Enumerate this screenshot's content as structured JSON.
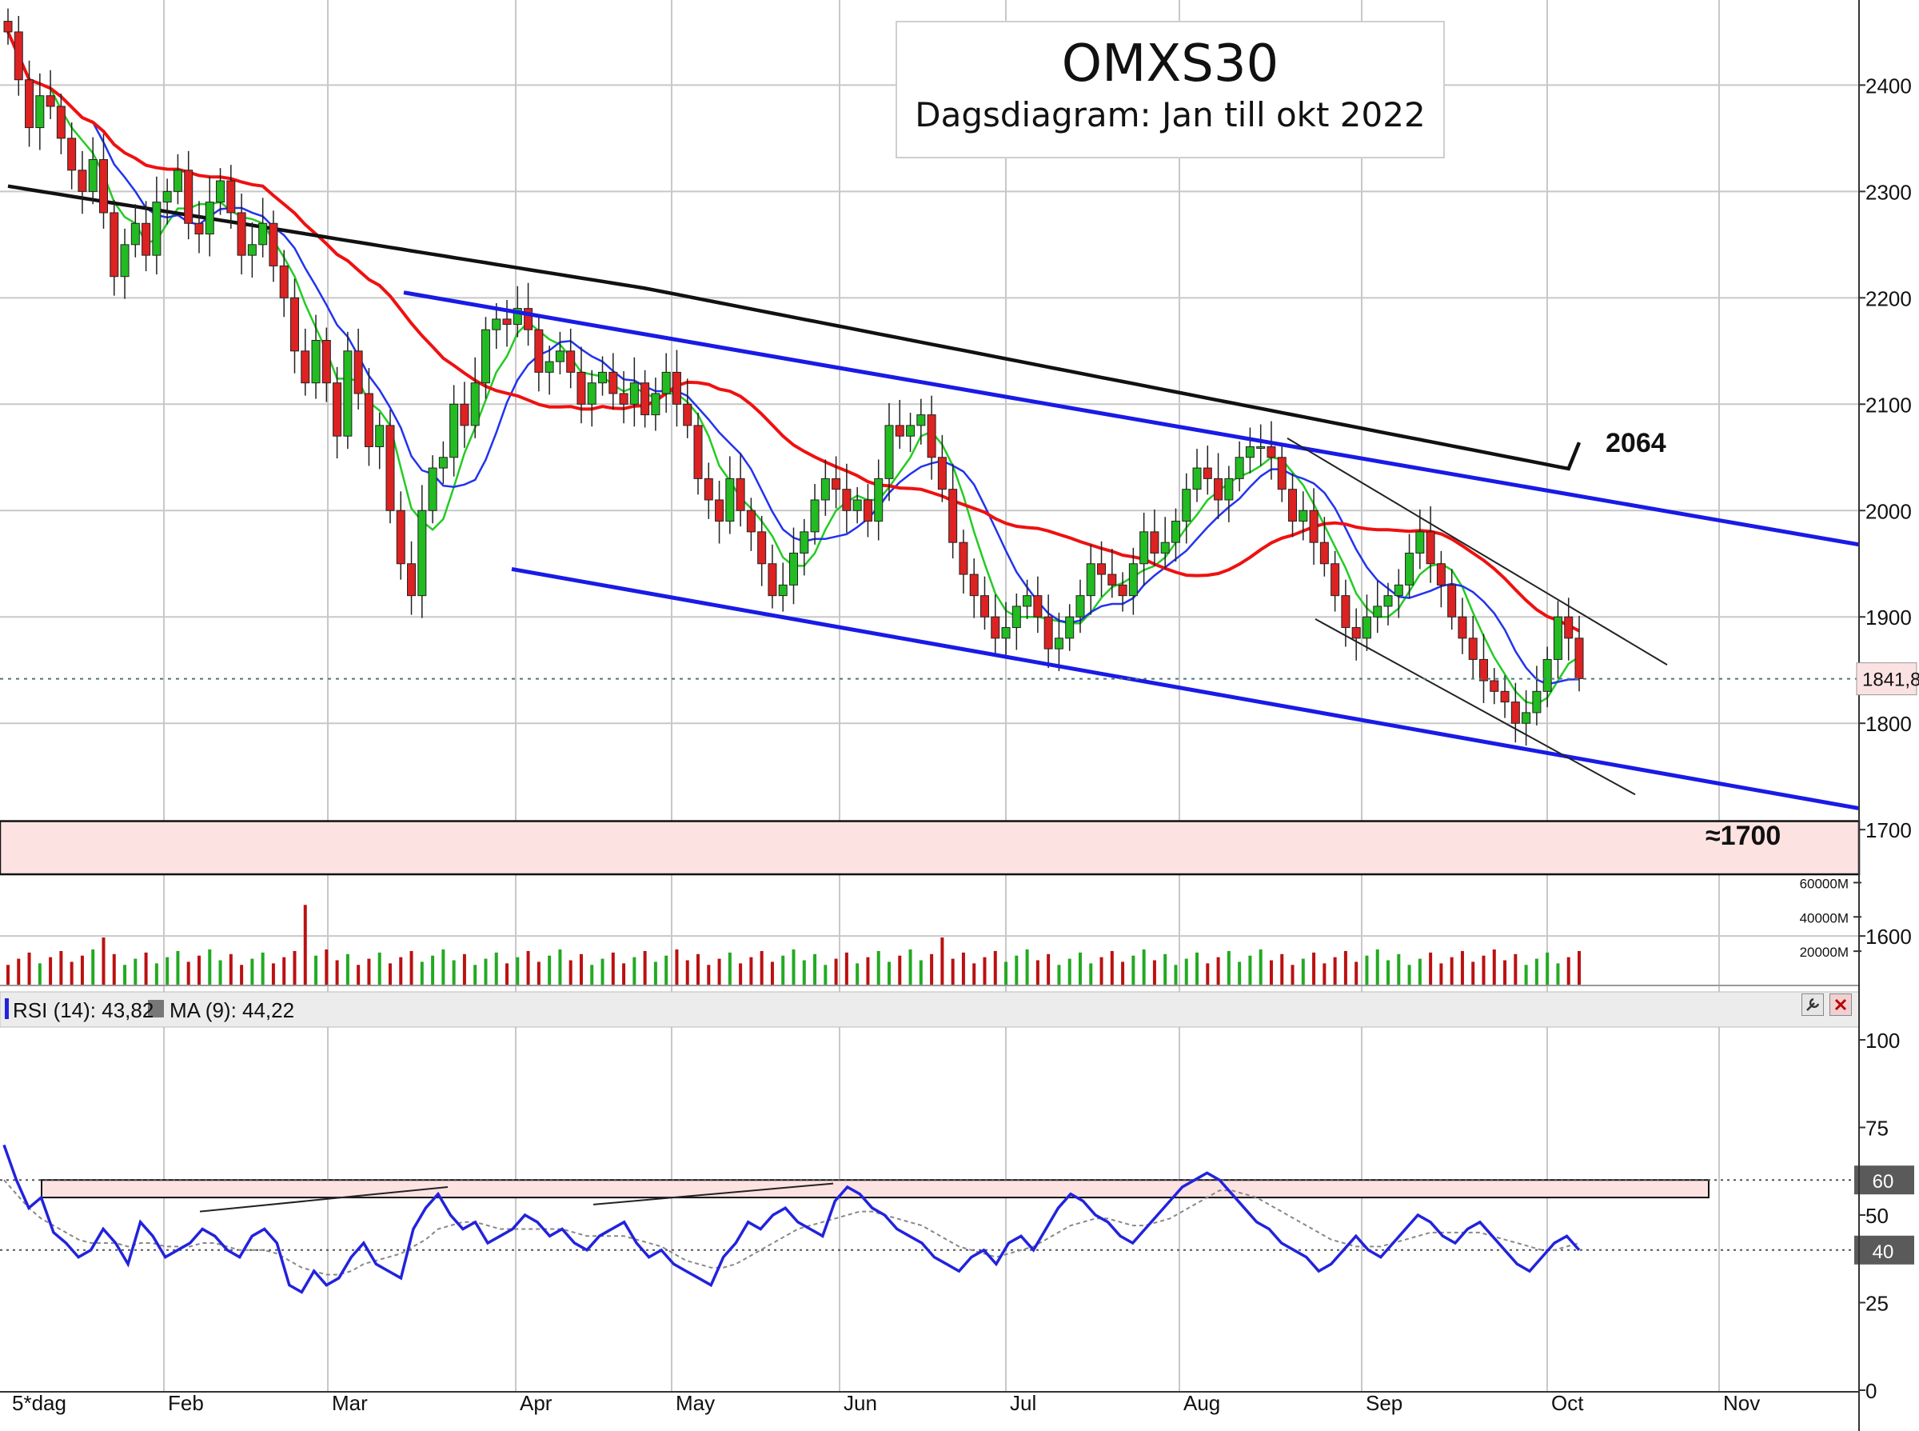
{
  "chart_data": [
    {
      "type": "candlestick",
      "title": "OMXS30",
      "subtitle": "Dagsdiagram:  Jan till okt 2022",
      "y_ticks": [
        "2400",
        "2300",
        "2200",
        "2100",
        "2000",
        "1900",
        "1800",
        "1700",
        "1600"
      ],
      "ylim": [
        1555,
        2480
      ],
      "x_months": [
        "5*dag",
        "Feb",
        "Mar",
        "Apr",
        "May",
        "Jun",
        "Jul",
        "Aug",
        "Sep",
        "Oct",
        "Nov"
      ],
      "last_price_label": "1841,8",
      "last_price": 1841.8,
      "annotations": [
        {
          "text": "2064",
          "value": 2064
        },
        {
          "text": "≈1700",
          "value": 1700
        }
      ],
      "support_zone": [
        1658,
        1708
      ],
      "series": [
        {
          "name": "price",
          "type": "candlestick",
          "up_color": "#22bb22",
          "down_color": "#dd2222",
          "closes": [
            2450,
            2405,
            2360,
            2390,
            2380,
            2350,
            2320,
            2300,
            2330,
            2280,
            2220,
            2250,
            2270,
            2240,
            2290,
            2300,
            2320,
            2270,
            2260,
            2290,
            2310,
            2280,
            2240,
            2250,
            2270,
            2230,
            2200,
            2150,
            2120,
            2160,
            2120,
            2070,
            2150,
            2110,
            2060,
            2080,
            2000,
            1950,
            1920,
            2000,
            2040,
            2050,
            2100,
            2080,
            2120,
            2170,
            2180,
            2175,
            2190,
            2170,
            2130,
            2140,
            2150,
            2130,
            2100,
            2120,
            2130,
            2110,
            2100,
            2120,
            2090,
            2110,
            2130,
            2100,
            2080,
            2030,
            2010,
            1990,
            2030,
            2000,
            1980,
            1950,
            1920,
            1930,
            1960,
            1980,
            2010,
            2030,
            2020,
            2000,
            2010,
            1990,
            2030,
            2080,
            2070,
            2080,
            2090,
            2050,
            2020,
            1970,
            1940,
            1920,
            1900,
            1880,
            1890,
            1910,
            1920,
            1900,
            1870,
            1880,
            1900,
            1920,
            1950,
            1940,
            1930,
            1920,
            1950,
            1980,
            1960,
            1970,
            1990,
            2020,
            2040,
            2030,
            2010,
            2030,
            2050,
            2060,
            2060,
            2050,
            2020,
            1990,
            2000,
            1970,
            1950,
            1920,
            1890,
            1880,
            1900,
            1910,
            1920,
            1930,
            1960,
            1980,
            1950,
            1930,
            1900,
            1880,
            1860,
            1840,
            1830,
            1820,
            1800,
            1810,
            1830,
            1860,
            1900,
            1880,
            1842
          ]
        },
        {
          "name": "MA20",
          "color": "#22cc22"
        },
        {
          "name": "MA10",
          "color": "#2233ee"
        },
        {
          "name": "MA50",
          "color": "#ee1111"
        },
        {
          "name": "MA200",
          "color": "#111111"
        }
      ]
    },
    {
      "type": "bar",
      "title": "",
      "y_ticks": [
        "60000M",
        "40000M",
        "20000M"
      ],
      "ylim": [
        0,
        70000
      ]
    },
    {
      "type": "line",
      "legend": [
        {
          "text": "RSI (14): 43,82",
          "color": "#2222dd"
        },
        {
          "text": "MA (9): 44,22",
          "color": "#777777"
        }
      ],
      "y_ticks": [
        "100",
        "75",
        "50",
        "25",
        "0"
      ],
      "ylim": [
        0,
        100
      ],
      "level_labels": [
        "60",
        "40"
      ],
      "levels": [
        60,
        40
      ],
      "overbought_zone": [
        55,
        60
      ],
      "series": [
        {
          "name": "RSI (14)",
          "color": "#2222dd",
          "values": [
            70,
            60,
            52,
            55,
            45,
            42,
            38,
            40,
            46,
            42,
            36,
            48,
            44,
            38,
            40,
            42,
            46,
            44,
            40,
            38,
            44,
            46,
            42,
            30,
            28,
            34,
            30,
            32,
            38,
            42,
            36,
            34,
            32,
            46,
            52,
            56,
            50,
            46,
            48,
            42,
            44,
            46,
            50,
            48,
            44,
            46,
            42,
            40,
            44,
            46,
            48,
            42,
            38,
            40,
            36,
            34,
            32,
            30,
            38,
            42,
            48,
            46,
            50,
            52,
            48,
            46,
            44,
            54,
            58,
            56,
            52,
            50,
            46,
            44,
            42,
            38,
            36,
            34,
            38,
            40,
            36,
            42,
            44,
            40,
            46,
            52,
            56,
            54,
            50,
            48,
            44,
            42,
            46,
            50,
            54,
            58,
            60,
            62,
            60,
            56,
            52,
            48,
            46,
            42,
            40,
            38,
            34,
            36,
            40,
            44,
            40,
            38,
            42,
            46,
            50,
            48,
            44,
            42,
            46,
            48,
            44,
            40,
            36,
            34,
            38,
            42,
            44,
            40
          ]
        },
        {
          "name": "MA (9)",
          "color": "#888888",
          "values": [
            60,
            56,
            52,
            49,
            47,
            45,
            43,
            42,
            42,
            42,
            41,
            42,
            42,
            41,
            41,
            41,
            42,
            42,
            41,
            40,
            40,
            40,
            39,
            37,
            35,
            34,
            33,
            33,
            34,
            36,
            37,
            38,
            39,
            41,
            43,
            46,
            47,
            48,
            48,
            47,
            46,
            46,
            46,
            46,
            46,
            46,
            45,
            44,
            44,
            44,
            44,
            43,
            42,
            41,
            39,
            37,
            36,
            35,
            35,
            36,
            38,
            40,
            42,
            44,
            46,
            47,
            48,
            49,
            50,
            51,
            51,
            50,
            49,
            48,
            47,
            45,
            43,
            41,
            40,
            39,
            38,
            39,
            40,
            41,
            43,
            45,
            47,
            48,
            49,
            49,
            48,
            47,
            47,
            48,
            49,
            51,
            53,
            55,
            57,
            57,
            56,
            55,
            53,
            51,
            49,
            47,
            45,
            43,
            42,
            41,
            41,
            41,
            42,
            43,
            44,
            45,
            45,
            45,
            45,
            45,
            44,
            43,
            42,
            41,
            40,
            40,
            41,
            42
          ]
        }
      ]
    }
  ],
  "toolbar": {
    "icons": [
      "wrench-icon",
      "close-icon"
    ]
  }
}
